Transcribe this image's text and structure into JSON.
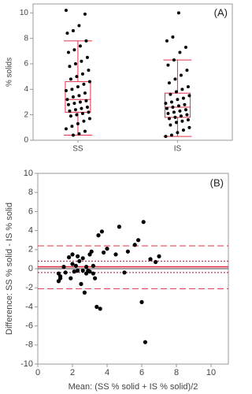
{
  "chart_data": [
    {
      "type": "box",
      "label": "(A)",
      "y_label": "% solids",
      "color": "#e0304a",
      "point_color": "#000000",
      "categories": [
        "SS",
        "IS"
      ],
      "boxes": [
        {
          "whisker_low": 0.4,
          "q1": 2.2,
          "median": 3.2,
          "q3": 4.6,
          "whisker_high": 7.8
        },
        {
          "whisker_low": 0.3,
          "q1": 1.8,
          "median": 2.6,
          "q3": 3.7,
          "whisker_high": 6.3
        }
      ],
      "points": [
        [
          10.2,
          9.9,
          9.0,
          8.6,
          8.4,
          7.8,
          7.4,
          7.1,
          6.9,
          6.5,
          6.2,
          6.0,
          5.8,
          5.5,
          5.2,
          5.0,
          4.8,
          4.6,
          4.4,
          4.2,
          4.0,
          3.9,
          3.7,
          3.5,
          3.4,
          3.2,
          3.1,
          3.0,
          2.9,
          2.8,
          2.6,
          2.5,
          2.4,
          2.3,
          2.2,
          2.1,
          2.0,
          1.9,
          1.7,
          1.5,
          1.3,
          1.1,
          0.9,
          0.7,
          0.5,
          0.4
        ],
        [
          10.0,
          8.1,
          7.8,
          7.3,
          6.9,
          6.3,
          5.9,
          5.5,
          5.1,
          4.8,
          4.5,
          4.2,
          4.0,
          3.8,
          3.6,
          3.5,
          3.3,
          3.2,
          3.0,
          2.9,
          2.8,
          2.7,
          2.6,
          2.5,
          2.4,
          2.3,
          2.2,
          2.1,
          2.0,
          1.9,
          1.8,
          1.7,
          1.6,
          1.5,
          1.4,
          1.2,
          1.0,
          0.8,
          0.6,
          0.4,
          0.3
        ]
      ],
      "ylim": [
        0,
        10.7
      ],
      "yticks": [
        0,
        2,
        4,
        6,
        8,
        10
      ]
    },
    {
      "type": "scatter",
      "label": "(B)",
      "x_label": "Mean: (SS % solid + IS % solid)/2",
      "y_label": "Difference: SS % solid - IS % solid",
      "color": "#000000",
      "x": [
        1.2,
        1.2,
        1.3,
        1.3,
        1.5,
        1.6,
        1.8,
        1.9,
        2.0,
        2.0,
        2.1,
        2.2,
        2.3,
        2.3,
        2.4,
        2.5,
        2.6,
        2.6,
        2.7,
        2.8,
        2.8,
        2.9,
        3.0,
        3.0,
        3.1,
        3.2,
        3.2,
        3.3,
        3.4,
        3.5,
        3.6,
        3.7,
        3.8,
        4.0,
        4.5,
        4.7,
        5.0,
        5.2,
        5.6,
        5.8,
        6.1,
        6.2,
        6.0,
        6.5,
        6.8,
        7.0
      ],
      "values": [
        -0.5,
        -1.3,
        -1.0,
        -0.8,
        0.2,
        -0.4,
        1.2,
        -1.0,
        1.5,
        0.5,
        -0.3,
        0.3,
        1.3,
        -0.2,
        0.8,
        -1.6,
        -0.2,
        1.1,
        -2.5,
        -0.5,
        0.2,
        -0.2,
        1.5,
        -0.3,
        1.8,
        -0.5,
        0.3,
        -1.0,
        -4.0,
        3.5,
        -4.2,
        3.9,
        1.7,
        2.1,
        1.5,
        4.4,
        -0.4,
        1.8,
        2.5,
        3.0,
        4.9,
        -7.7,
        -3.5,
        1.0,
        0.7,
        1.3
      ],
      "reference_lines": [
        {
          "value": 0,
          "style": "solid",
          "color": "#444444"
        },
        {
          "value": 0.2,
          "style": "solid",
          "color": "#e0304a"
        },
        {
          "value": 2.4,
          "style": "dashed",
          "color": "#e0304a"
        },
        {
          "value": -2.1,
          "style": "dashed",
          "color": "#e0304a"
        },
        {
          "value": 0.8,
          "style": "dotted",
          "color": "#a0203a"
        },
        {
          "value": -0.4,
          "style": "dotted",
          "color": "#a0203a"
        }
      ],
      "xlim": [
        0,
        11
      ],
      "xticks": [
        0,
        2,
        4,
        6,
        8,
        10
      ],
      "ylim": [
        -10,
        10
      ],
      "yticks": [
        -10,
        -8,
        -6,
        -4,
        -2,
        0,
        2,
        4,
        6,
        8,
        10
      ]
    }
  ]
}
